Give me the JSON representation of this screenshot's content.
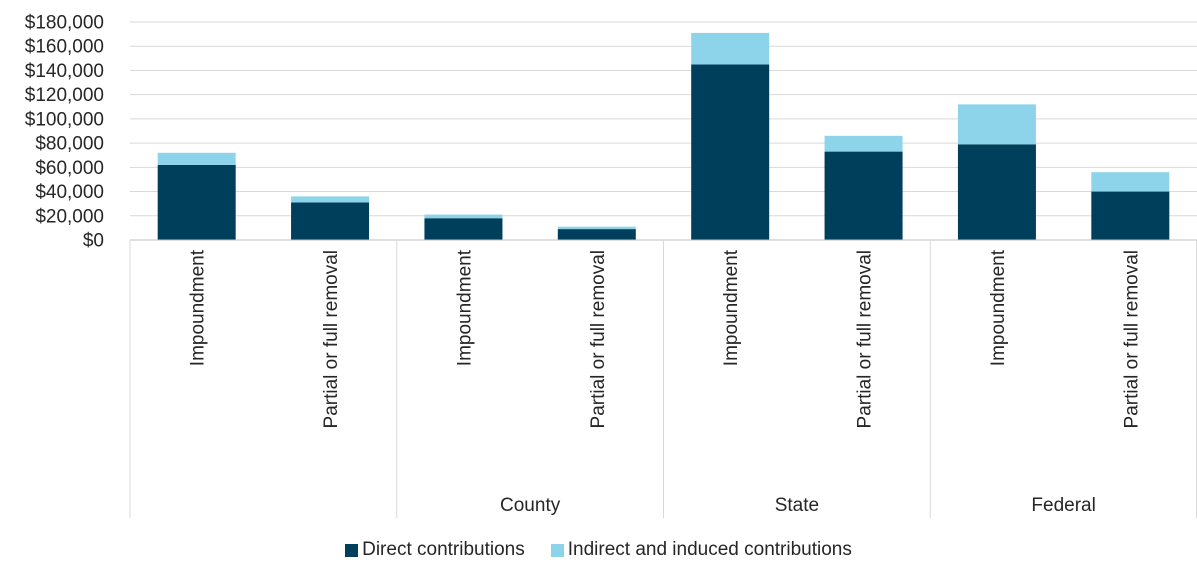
{
  "chart_data": {
    "type": "bar",
    "stacked": true,
    "title": "",
    "xlabel": "",
    "ylabel": "",
    "ylim": [
      0,
      180000
    ],
    "y_ticks": [
      "$0",
      "$20,000",
      "$40,000",
      "$60,000",
      "$80,000",
      "$100,000",
      "$120,000",
      "$140,000",
      "$160,000",
      "$180,000"
    ],
    "grid": true,
    "legend_position": "bottom",
    "groups": [
      "",
      "County",
      "State",
      "Federal"
    ],
    "categories": [
      "Impoundment",
      "Partial or full removal",
      "Impoundment",
      "Partial or full removal",
      "Impoundment",
      "Partial or full removal",
      "Impoundment",
      "Partial or full removal"
    ],
    "group_index": [
      0,
      0,
      1,
      1,
      2,
      2,
      3,
      3
    ],
    "series": [
      {
        "name": "Direct contributions",
        "color": "#003f5c",
        "values": [
          62000,
          31000,
          18000,
          9000,
          145000,
          73000,
          79000,
          40000
        ]
      },
      {
        "name": "Indirect and induced contributions",
        "color": "#8dd4ea",
        "values": [
          10000,
          5000,
          3000,
          2000,
          26000,
          13000,
          33000,
          16000
        ]
      }
    ]
  }
}
